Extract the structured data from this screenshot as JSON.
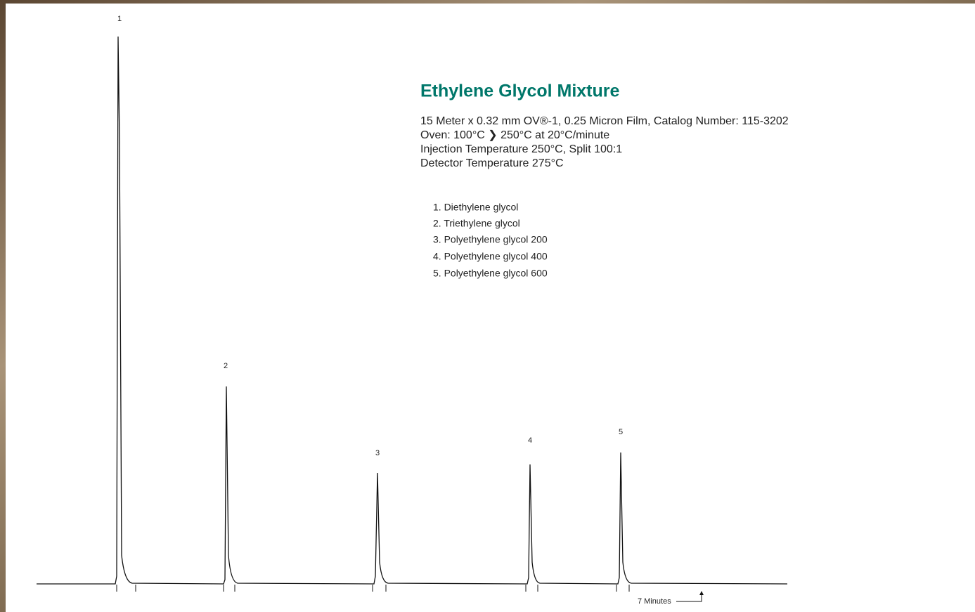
{
  "title": "Ethylene Glycol Mixture",
  "conditions": [
    "15 Meter x 0.32 mm OV®-1, 0.25 Micron Film, Catalog Number: 115-3202",
    "Oven: 100°C ❯ 250°C at 20°C/minute",
    "Injection Temperature 250°C, Split 100:1",
    "Detector Temperature 275°C"
  ],
  "compounds": [
    "1. Diethylene glycol",
    "2. Triethylene glycol",
    "3. Polyethylene glycol 200",
    "4. Polyethylene glycol 400",
    "5. Polyethylene glycol 600"
  ],
  "peak_labels": [
    "1",
    "2",
    "3",
    "4",
    "5"
  ],
  "time_note": "7 Minutes"
}
